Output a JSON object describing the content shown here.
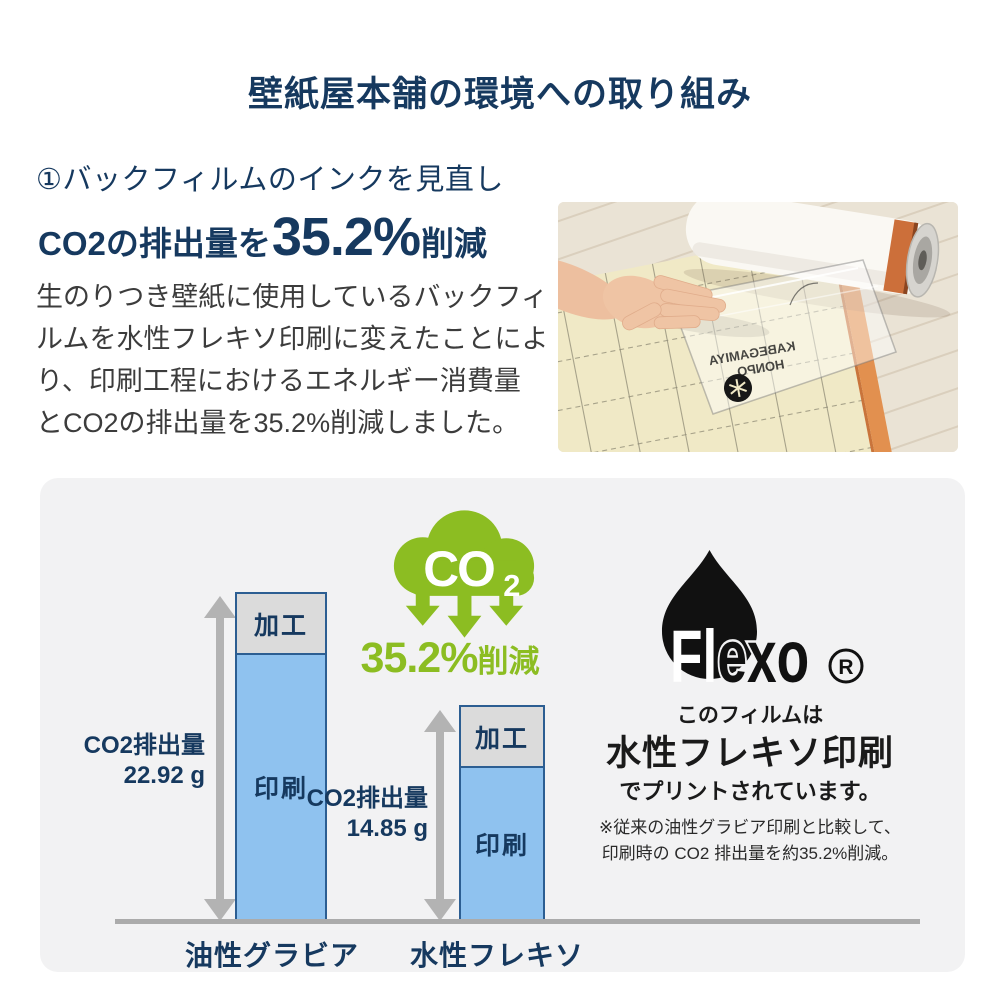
{
  "page_title": "壁紙屋本舗の環境への取り組み",
  "intro": {
    "heading": "①バックフィルムのインクを見直し",
    "emission_prefix": "CO2の排出量を",
    "emission_percent": "35.2%",
    "emission_suffix": "削減",
    "body_lines": [
      "生のりつき壁紙に使用しているバックフィ",
      "ルムを水性フレキソ印刷に変えたことによ",
      "り、印刷工程におけるエネルギー消費量",
      "とCO2の排出量を35.2%削減しました。"
    ]
  },
  "photo": {
    "film_print_line1": "KABEGAMIYA",
    "film_print_line2": "HONPO"
  },
  "chart_data": {
    "type": "bar",
    "stacked": true,
    "categories": [
      "油性グラビア",
      "水性フレキソ"
    ],
    "series": [
      {
        "name": "印刷",
        "values": [
          18.6,
          10.6
        ],
        "color": "#8FC2EF"
      },
      {
        "name": "加工",
        "values": [
          4.3,
          4.3
        ],
        "color": "#DBDBDB"
      }
    ],
    "total_values": [
      22.92,
      14.85
    ],
    "totals": [
      {
        "label": "CO2排出量",
        "value": "22.92 g"
      },
      {
        "label": "CO2排出量",
        "value": "14.85 g"
      }
    ],
    "unit": "g",
    "annotations": {
      "cloud_text": "CO",
      "cloud_sub": "2",
      "reduction_percent": "35.2%",
      "reduction_suffix": "削減"
    }
  },
  "flexo": {
    "brand_part1": "Fl",
    "brand_part2": "exo",
    "registered": "R",
    "line1": "このフィルムは",
    "line2": "水性フレキソ印刷",
    "line3": "でプリントされています。",
    "note1": "※従来の油性グラビア印刷と比較して、",
    "note2": "印刷時の CO2 排出量を約35.2%削減。"
  },
  "colors": {
    "navy": "#16395F",
    "green": "#8CBD22",
    "bar_blue": "#8FC2EF",
    "bar_gray": "#DBDBDB",
    "bar_border": "#2C5E92",
    "panel_bg": "#F2F2F3",
    "arrow_gray": "#B3B3B3",
    "body_text": "#3C3C3C"
  }
}
